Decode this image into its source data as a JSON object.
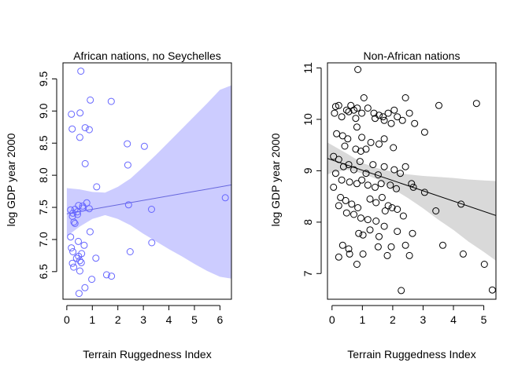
{
  "chart_data": [
    {
      "type": "scatter",
      "title": "African nations, no Seychelles",
      "xlabel": "Terrain Ruggedness Index",
      "ylabel": "log GDP year 2000",
      "xlim": [
        -0.15,
        6.45
      ],
      "ylim": [
        6.07,
        9.75
      ],
      "xticks": [
        "0",
        "1",
        "2",
        "3",
        "4",
        "5",
        "6"
      ],
      "yticks": [
        "6.5",
        "7.0",
        "7.5",
        "8.0",
        "8.5",
        "9.0",
        "9.5"
      ],
      "point_color": "#6666ff",
      "band_color": "#ccccff",
      "line_color": "#6666dd",
      "points": [
        [
          0.55,
          9.62
        ],
        [
          0.18,
          8.95
        ],
        [
          0.92,
          9.17
        ],
        [
          1.74,
          9.15
        ],
        [
          0.52,
          8.97
        ],
        [
          0.21,
          8.72
        ],
        [
          0.72,
          8.74
        ],
        [
          0.88,
          8.71
        ],
        [
          0.51,
          8.59
        ],
        [
          2.37,
          8.49
        ],
        [
          3.04,
          8.45
        ],
        [
          0.72,
          8.18
        ],
        [
          2.39,
          8.16
        ],
        [
          1.17,
          7.82
        ],
        [
          0.15,
          7.46
        ],
        [
          0.32,
          7.47
        ],
        [
          0.41,
          7.43
        ],
        [
          0.46,
          7.53
        ],
        [
          0.62,
          7.52
        ],
        [
          0.78,
          7.57
        ],
        [
          0.88,
          7.48
        ],
        [
          0.22,
          7.36
        ],
        [
          0.28,
          7.27
        ],
        [
          0.32,
          7.25
        ],
        [
          0.24,
          7.41
        ],
        [
          0.62,
          7.49
        ],
        [
          0.42,
          7.39
        ],
        [
          2.42,
          7.54
        ],
        [
          3.32,
          7.47
        ],
        [
          6.21,
          7.65
        ],
        [
          0.91,
          7.12
        ],
        [
          0.15,
          7.04
        ],
        [
          0.45,
          6.97
        ],
        [
          0.68,
          6.91
        ],
        [
          0.18,
          6.87
        ],
        [
          0.24,
          6.81
        ],
        [
          0.46,
          6.74
        ],
        [
          0.58,
          6.78
        ],
        [
          0.38,
          6.71
        ],
        [
          1.14,
          6.71
        ],
        [
          2.48,
          6.81
        ],
        [
          3.33,
          6.95
        ],
        [
          0.22,
          6.63
        ],
        [
          0.51,
          6.67
        ],
        [
          0.57,
          6.64
        ],
        [
          0.27,
          6.57
        ],
        [
          0.51,
          6.51
        ],
        [
          0.98,
          6.38
        ],
        [
          1.56,
          6.45
        ],
        [
          1.75,
          6.43
        ],
        [
          0.71,
          6.25
        ],
        [
          0.48,
          6.16
        ]
      ],
      "fit_line": [
        [
          0.0,
          7.4
        ],
        [
          6.45,
          7.85
        ]
      ],
      "band": [
        [
          0.0,
          7.05,
          7.8
        ],
        [
          0.5,
          7.2,
          7.78
        ],
        [
          1.0,
          7.32,
          7.74
        ],
        [
          1.5,
          7.38,
          7.73
        ],
        [
          2.0,
          7.32,
          7.82
        ],
        [
          2.5,
          7.22,
          7.95
        ],
        [
          3.0,
          7.09,
          8.13
        ],
        [
          3.5,
          6.97,
          8.32
        ],
        [
          4.0,
          6.85,
          8.52
        ],
        [
          4.5,
          6.74,
          8.72
        ],
        [
          5.0,
          6.62,
          8.92
        ],
        [
          5.5,
          6.51,
          9.12
        ],
        [
          6.0,
          6.42,
          9.33
        ],
        [
          6.45,
          6.39,
          9.4
        ]
      ]
    },
    {
      "type": "scatter",
      "title": "Non-African nations",
      "xlabel": "Terrain Ruggedness Index",
      "ylabel": "log GDP year 2000",
      "xlim": [
        -0.15,
        5.4
      ],
      "ylim": [
        6.5,
        11.1
      ],
      "xticks": [
        "0",
        "1",
        "2",
        "3",
        "4",
        "5"
      ],
      "yticks": [
        "7",
        "8",
        "9",
        "10",
        "11"
      ],
      "point_color": "#000000",
      "band_color": "#d9d9d9",
      "line_color": "#000000",
      "points": [
        [
          0.85,
          10.97
        ],
        [
          2.42,
          10.42
        ],
        [
          4.76,
          10.31
        ],
        [
          3.52,
          10.27
        ],
        [
          0.12,
          10.25
        ],
        [
          0.22,
          10.27
        ],
        [
          0.48,
          10.18
        ],
        [
          0.62,
          10.27
        ],
        [
          0.72,
          10.18
        ],
        [
          0.83,
          10.22
        ],
        [
          1.05,
          10.42
        ],
        [
          1.18,
          10.22
        ],
        [
          1.38,
          10.12
        ],
        [
          1.55,
          10.08
        ],
        [
          1.68,
          10.05
        ],
        [
          1.85,
          10.12
        ],
        [
          2.05,
          10.18
        ],
        [
          2.15,
          10.05
        ],
        [
          2.32,
          9.98
        ],
        [
          2.55,
          10.12
        ],
        [
          0.08,
          10.12
        ],
        [
          0.32,
          10.05
        ],
        [
          0.55,
          10.15
        ],
        [
          0.78,
          10.02
        ],
        [
          0.98,
          10.12
        ],
        [
          1.42,
          10.02
        ],
        [
          1.72,
          9.98
        ],
        [
          1.95,
          9.92
        ],
        [
          2.72,
          9.92
        ],
        [
          3.05,
          9.75
        ],
        [
          0.15,
          9.72
        ],
        [
          0.35,
          9.68
        ],
        [
          0.52,
          9.62
        ],
        [
          0.82,
          9.85
        ],
        [
          0.98,
          9.65
        ],
        [
          1.28,
          9.55
        ],
        [
          1.55,
          9.52
        ],
        [
          1.72,
          9.62
        ],
        [
          2.02,
          9.45
        ],
        [
          0.42,
          9.48
        ],
        [
          0.78,
          9.42
        ],
        [
          0.95,
          9.38
        ],
        [
          1.12,
          9.42
        ],
        [
          0.05,
          9.28
        ],
        [
          0.22,
          9.22
        ],
        [
          0.38,
          9.08
        ],
        [
          0.55,
          9.12
        ],
        [
          0.72,
          9.02
        ],
        [
          0.92,
          9.18
        ],
        [
          1.12,
          8.95
        ],
        [
          1.35,
          9.12
        ],
        [
          1.52,
          8.92
        ],
        [
          1.72,
          9.08
        ],
        [
          2.05,
          9.02
        ],
        [
          2.25,
          8.95
        ],
        [
          2.42,
          9.08
        ],
        [
          0.12,
          8.95
        ],
        [
          0.32,
          8.82
        ],
        [
          0.58,
          8.78
        ],
        [
          0.82,
          8.75
        ],
        [
          0.98,
          8.82
        ],
        [
          1.18,
          8.72
        ],
        [
          1.42,
          8.68
        ],
        [
          1.62,
          8.75
        ],
        [
          1.92,
          8.72
        ],
        [
          2.12,
          8.65
        ],
        [
          2.62,
          8.75
        ],
        [
          2.68,
          8.68
        ],
        [
          3.05,
          8.58
        ],
        [
          0.05,
          8.68
        ],
        [
          0.28,
          8.48
        ],
        [
          0.45,
          8.42
        ],
        [
          0.65,
          8.35
        ],
        [
          0.85,
          8.28
        ],
        [
          1.25,
          8.45
        ],
        [
          1.45,
          8.38
        ],
        [
          1.65,
          8.48
        ],
        [
          1.85,
          8.32
        ],
        [
          2.15,
          8.25
        ],
        [
          2.35,
          8.12
        ],
        [
          0.22,
          8.32
        ],
        [
          0.48,
          8.18
        ],
        [
          0.72,
          8.15
        ],
        [
          0.95,
          8.08
        ],
        [
          1.18,
          8.05
        ],
        [
          1.45,
          8.02
        ],
        [
          1.75,
          8.22
        ],
        [
          1.98,
          8.28
        ],
        [
          3.42,
          8.22
        ],
        [
          4.25,
          8.35
        ],
        [
          0.88,
          7.78
        ],
        [
          1.02,
          7.75
        ],
        [
          1.25,
          7.85
        ],
        [
          1.55,
          7.72
        ],
        [
          1.72,
          7.92
        ],
        [
          2.15,
          7.82
        ],
        [
          2.65,
          7.78
        ],
        [
          0.35,
          7.55
        ],
        [
          0.55,
          7.48
        ],
        [
          1.52,
          7.52
        ],
        [
          1.95,
          7.52
        ],
        [
          2.42,
          7.55
        ],
        [
          3.65,
          7.55
        ],
        [
          0.22,
          7.32
        ],
        [
          0.58,
          7.38
        ],
        [
          1.02,
          7.38
        ],
        [
          1.82,
          7.35
        ],
        [
          2.55,
          7.35
        ],
        [
          4.32,
          7.38
        ],
        [
          5.02,
          7.18
        ],
        [
          0.82,
          7.18
        ],
        [
          2.28,
          6.67
        ],
        [
          5.28,
          6.68
        ]
      ],
      "fit_line": [
        [
          -0.15,
          9.24
        ],
        [
          5.4,
          8.13
        ]
      ],
      "band": [
        [
          -0.15,
          8.93,
          9.55
        ],
        [
          0.0,
          8.96,
          9.5
        ],
        [
          0.5,
          9.02,
          9.33
        ],
        [
          1.0,
          8.95,
          9.15
        ],
        [
          1.5,
          8.83,
          9.05
        ],
        [
          2.0,
          8.65,
          8.98
        ],
        [
          2.5,
          8.47,
          8.93
        ],
        [
          3.0,
          8.27,
          8.9
        ],
        [
          3.5,
          8.05,
          8.88
        ],
        [
          4.0,
          7.85,
          8.86
        ],
        [
          4.5,
          7.62,
          8.83
        ],
        [
          5.0,
          7.42,
          8.81
        ],
        [
          5.4,
          7.25,
          8.8
        ]
      ]
    }
  ]
}
